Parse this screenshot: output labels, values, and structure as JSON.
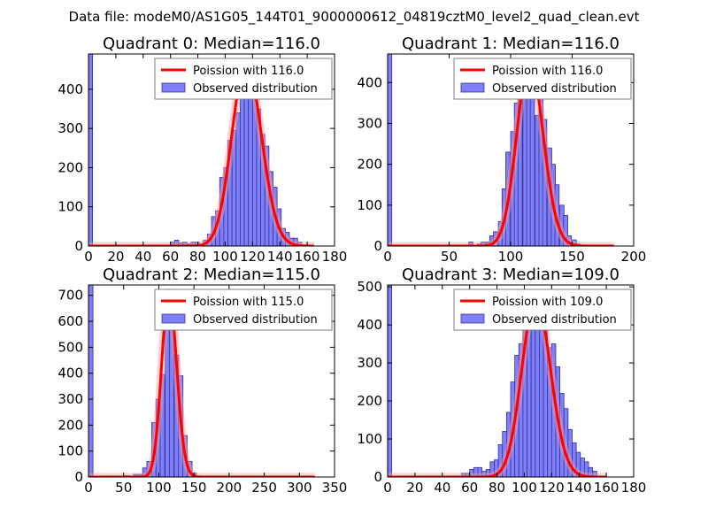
{
  "suptitle": "Data file: modeM0/AS1G05_144T01_9000000612_04819cztM0_level2_quad_clean.evt",
  "colors": {
    "bar_fill": "#7f7ff9",
    "bar_edge": "#33339a",
    "curve": "#ff0000",
    "curve_halo": "#ff9a9a",
    "axes": "#000000",
    "legend_edge": "#7f7f7f"
  },
  "chart_data": [
    {
      "type": "bar",
      "title": "Quadrant 0: Median=116.0",
      "xlim": [
        0,
        180
      ],
      "ylim": [
        0,
        490
      ],
      "xticks": [
        0,
        20,
        40,
        60,
        80,
        100,
        120,
        140,
        160,
        180
      ],
      "yticks": [
        0,
        100,
        200,
        300,
        400
      ],
      "legend": {
        "location": "upper right",
        "curve_label": "Poission with 116.0",
        "bar_label": "Observed distribution"
      },
      "bin_width": 3,
      "bins": [
        {
          "x": 0,
          "count": 490
        },
        {
          "x": 60,
          "count": 10
        },
        {
          "x": 63,
          "count": 15
        },
        {
          "x": 66,
          "count": 8
        },
        {
          "x": 69,
          "count": 10
        },
        {
          "x": 72,
          "count": 5
        },
        {
          "x": 75,
          "count": 10
        },
        {
          "x": 78,
          "count": 10
        },
        {
          "x": 81,
          "count": 5
        },
        {
          "x": 84,
          "count": 15
        },
        {
          "x": 87,
          "count": 30
        },
        {
          "x": 90,
          "count": 75
        },
        {
          "x": 93,
          "count": 90
        },
        {
          "x": 96,
          "count": 175
        },
        {
          "x": 99,
          "count": 200
        },
        {
          "x": 102,
          "count": 270
        },
        {
          "x": 105,
          "count": 295
        },
        {
          "x": 108,
          "count": 340
        },
        {
          "x": 111,
          "count": 400
        },
        {
          "x": 114,
          "count": 420
        },
        {
          "x": 117,
          "count": 415
        },
        {
          "x": 120,
          "count": 445
        },
        {
          "x": 123,
          "count": 350
        },
        {
          "x": 126,
          "count": 285
        },
        {
          "x": 129,
          "count": 255
        },
        {
          "x": 132,
          "count": 190
        },
        {
          "x": 135,
          "count": 150
        },
        {
          "x": 138,
          "count": 95
        },
        {
          "x": 141,
          "count": 45
        },
        {
          "x": 144,
          "count": 35
        },
        {
          "x": 147,
          "count": 20
        },
        {
          "x": 150,
          "count": 20
        },
        {
          "x": 153,
          "count": 10
        }
      ],
      "poisson": {
        "mean": 116.0,
        "peak": 470,
        "x_range": [
          0,
          165
        ]
      }
    },
    {
      "type": "bar",
      "title": "Quadrant 1: Median=116.0",
      "xlim": [
        0,
        200
      ],
      "ylim": [
        0,
        470
      ],
      "xticks": [
        0,
        50,
        100,
        150,
        200
      ],
      "yticks": [
        0,
        100,
        200,
        300,
        400
      ],
      "legend": {
        "location": "upper right",
        "curve_label": "Poission with 116.0",
        "bar_label": "Observed distribution"
      },
      "bin_width": 3.4,
      "bins": [
        {
          "x": 0,
          "count": 470
        },
        {
          "x": 66,
          "count": 10
        },
        {
          "x": 73,
          "count": 5
        },
        {
          "x": 76,
          "count": 10
        },
        {
          "x": 80,
          "count": 10
        },
        {
          "x": 83,
          "count": 25
        },
        {
          "x": 86,
          "count": 35
        },
        {
          "x": 90,
          "count": 60
        },
        {
          "x": 93,
          "count": 140
        },
        {
          "x": 96,
          "count": 230
        },
        {
          "x": 100,
          "count": 280
        },
        {
          "x": 103,
          "count": 350
        },
        {
          "x": 106,
          "count": 380
        },
        {
          "x": 110,
          "count": 425
        },
        {
          "x": 113,
          "count": 450
        },
        {
          "x": 116,
          "count": 360
        },
        {
          "x": 120,
          "count": 320
        },
        {
          "x": 123,
          "count": 365
        },
        {
          "x": 126,
          "count": 310
        },
        {
          "x": 130,
          "count": 240
        },
        {
          "x": 133,
          "count": 200
        },
        {
          "x": 136,
          "count": 150
        },
        {
          "x": 140,
          "count": 100
        },
        {
          "x": 143,
          "count": 75
        },
        {
          "x": 146,
          "count": 25
        },
        {
          "x": 150,
          "count": 15
        },
        {
          "x": 153,
          "count": 5
        }
      ],
      "poisson": {
        "mean": 116.0,
        "peak": 450,
        "x_range": [
          0,
          184
        ]
      }
    },
    {
      "type": "bar",
      "title": "Quadrant 2: Median=115.0",
      "xlim": [
        0,
        350
      ],
      "ylim": [
        0,
        740
      ],
      "xticks": [
        0,
        50,
        100,
        150,
        200,
        250,
        300,
        350
      ],
      "yticks": [
        0,
        100,
        200,
        300,
        400,
        500,
        600,
        700
      ],
      "legend": {
        "location": "upper right",
        "curve_label": "Poission with 115.0",
        "bar_label": "Observed distribution"
      },
      "bin_width": 6.4,
      "bins": [
        {
          "x": 0,
          "count": 740
        },
        {
          "x": 51,
          "count": 5
        },
        {
          "x": 64,
          "count": 10
        },
        {
          "x": 70,
          "count": 10
        },
        {
          "x": 77,
          "count": 35
        },
        {
          "x": 83,
          "count": 60
        },
        {
          "x": 90,
          "count": 210
        },
        {
          "x": 96,
          "count": 300
        },
        {
          "x": 102,
          "count": 395
        },
        {
          "x": 109,
          "count": 600
        },
        {
          "x": 115,
          "count": 705
        },
        {
          "x": 122,
          "count": 470
        },
        {
          "x": 128,
          "count": 390
        },
        {
          "x": 134,
          "count": 160
        },
        {
          "x": 141,
          "count": 60
        },
        {
          "x": 147,
          "count": 15
        }
      ],
      "poisson": {
        "mean": 115.0,
        "peak": 710,
        "x_range": [
          0,
          322
        ]
      }
    },
    {
      "type": "bar",
      "title": "Quadrant 3: Median=109.0",
      "xlim": [
        0,
        180
      ],
      "ylim": [
        0,
        505
      ],
      "xticks": [
        0,
        20,
        40,
        60,
        80,
        100,
        120,
        140,
        160,
        180
      ],
      "yticks": [
        0,
        100,
        200,
        300,
        400,
        500
      ],
      "legend": {
        "location": "upper right",
        "curve_label": "Poission with 109.0",
        "bar_label": "Observed distribution"
      },
      "bin_width": 3,
      "bins": [
        {
          "x": 0,
          "count": 505
        },
        {
          "x": 54,
          "count": 10
        },
        {
          "x": 57,
          "count": 10
        },
        {
          "x": 60,
          "count": 20
        },
        {
          "x": 63,
          "count": 25
        },
        {
          "x": 66,
          "count": 25
        },
        {
          "x": 69,
          "count": 15
        },
        {
          "x": 72,
          "count": 20
        },
        {
          "x": 75,
          "count": 40
        },
        {
          "x": 78,
          "count": 45
        },
        {
          "x": 81,
          "count": 85
        },
        {
          "x": 84,
          "count": 120
        },
        {
          "x": 87,
          "count": 170
        },
        {
          "x": 90,
          "count": 250
        },
        {
          "x": 93,
          "count": 320
        },
        {
          "x": 96,
          "count": 350
        },
        {
          "x": 99,
          "count": 390
        },
        {
          "x": 102,
          "count": 450
        },
        {
          "x": 105,
          "count": 455
        },
        {
          "x": 108,
          "count": 400
        },
        {
          "x": 111,
          "count": 475
        },
        {
          "x": 114,
          "count": 445
        },
        {
          "x": 117,
          "count": 340
        },
        {
          "x": 120,
          "count": 350
        },
        {
          "x": 123,
          "count": 290
        },
        {
          "x": 126,
          "count": 220
        },
        {
          "x": 129,
          "count": 180
        },
        {
          "x": 132,
          "count": 125
        },
        {
          "x": 135,
          "count": 90
        },
        {
          "x": 138,
          "count": 65
        },
        {
          "x": 141,
          "count": 50
        },
        {
          "x": 144,
          "count": 40
        },
        {
          "x": 147,
          "count": 25
        },
        {
          "x": 150,
          "count": 15
        }
      ],
      "poisson": {
        "mean": 109.0,
        "peak": 470,
        "x_range": [
          0,
          160
        ]
      }
    }
  ]
}
